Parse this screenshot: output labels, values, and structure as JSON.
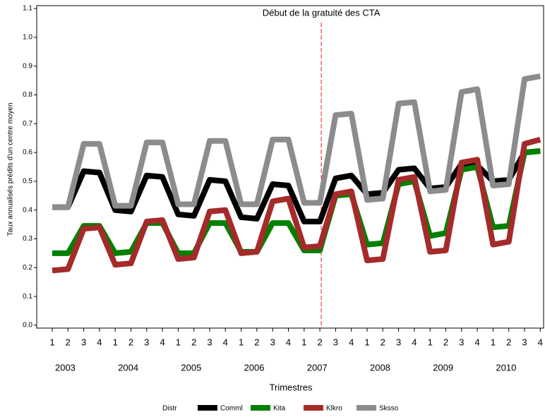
{
  "chart_data": {
    "type": "line",
    "y_label": "Taux annualisés prédits d'un centre moyen",
    "x_label": "Trimestres",
    "legend_title": "Distr",
    "categories": [
      "1",
      "2",
      "3",
      "4",
      "1",
      "2",
      "3",
      "4",
      "1",
      "2",
      "3",
      "4",
      "1",
      "2",
      "3",
      "4",
      "1",
      "2",
      "3",
      "4",
      "1",
      "2",
      "3",
      "4",
      "1",
      "2",
      "3",
      "4",
      "1",
      "2",
      "3",
      "4"
    ],
    "years": [
      "2003",
      "2004",
      "2005",
      "2006",
      "2007",
      "2008",
      "2009",
      "2010"
    ],
    "annotation": {
      "text": "Début de la gratuité des CTA",
      "x": 17,
      "color": "#e8141e"
    },
    "ylim": [
      -0.01,
      1.11
    ],
    "yticks": [
      {
        "value": 0,
        "label": "0.0"
      },
      0.1,
      0.2,
      0.3,
      0.4,
      0.5,
      0.6,
      0.7,
      0.8,
      0.9,
      {
        "value": 1,
        "label": "1.0"
      },
      1.1
    ],
    "series": [
      {
        "name": "Comml",
        "color": "#000000",
        "values": [
          0.41,
          0.41,
          0.535,
          0.53,
          0.4,
          0.395,
          0.52,
          0.515,
          0.385,
          0.38,
          0.505,
          0.5,
          0.375,
          0.37,
          0.49,
          0.485,
          0.36,
          0.36,
          0.51,
          0.52,
          0.455,
          0.46,
          0.54,
          0.545,
          0.475,
          0.48,
          0.56,
          0.555,
          0.5,
          0.505,
          0.6,
          0.605
        ]
      },
      {
        "name": "Kita",
        "color": "#008000",
        "values": [
          0.25,
          0.25,
          0.345,
          0.345,
          0.25,
          0.255,
          0.355,
          0.355,
          0.25,
          0.25,
          0.355,
          0.355,
          0.255,
          0.255,
          0.355,
          0.355,
          0.26,
          0.26,
          0.45,
          0.455,
          0.28,
          0.285,
          0.49,
          0.5,
          0.31,
          0.32,
          0.54,
          0.55,
          0.34,
          0.345,
          0.6,
          0.605
        ]
      },
      {
        "name": "Klkro",
        "color": "#a52a2a",
        "values": [
          0.19,
          0.195,
          0.335,
          0.34,
          0.21,
          0.215,
          0.36,
          0.365,
          0.23,
          0.235,
          0.395,
          0.4,
          0.25,
          0.255,
          0.43,
          0.44,
          0.27,
          0.275,
          0.455,
          0.465,
          0.225,
          0.23,
          0.505,
          0.515,
          0.255,
          0.26,
          0.565,
          0.575,
          0.28,
          0.29,
          0.63,
          0.645
        ]
      },
      {
        "name": "Sksso",
        "color": "#8c8c8c",
        "values": [
          0.41,
          0.41,
          0.63,
          0.63,
          0.415,
          0.415,
          0.635,
          0.635,
          0.42,
          0.42,
          0.64,
          0.64,
          0.42,
          0.42,
          0.645,
          0.645,
          0.425,
          0.425,
          0.73,
          0.735,
          0.435,
          0.44,
          0.77,
          0.775,
          0.465,
          0.47,
          0.81,
          0.82,
          0.485,
          0.49,
          0.855,
          0.865
        ]
      }
    ]
  }
}
